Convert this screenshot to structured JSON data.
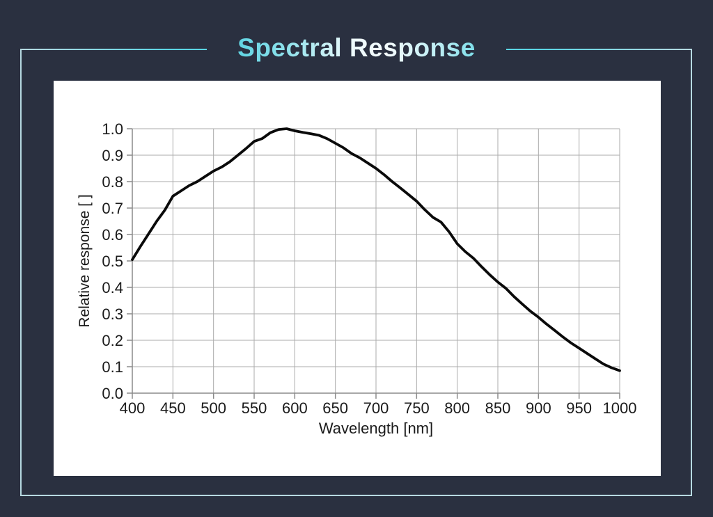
{
  "page": {
    "title": "Spectral Response",
    "background_color": "#2a3040",
    "accent_color": "#5bd6e4",
    "frame_line_color": "#b6d9e1",
    "panel_color": "#ffffff"
  },
  "chart_data": {
    "type": "line",
    "title": "Spectral Response",
    "xlabel": "Wavelength [nm]",
    "ylabel": "Relative response [ ]",
    "xlim": [
      400,
      1000
    ],
    "ylim": [
      0.0,
      1.0
    ],
    "grid": true,
    "legend": false,
    "grid_color": "#ababab",
    "axis_color": "#8a8a8a",
    "tick_label_color": "#1a1a1a",
    "line_color": "#0a0a0a",
    "line_width": 3.8,
    "xticks": [
      400,
      450,
      500,
      550,
      600,
      650,
      700,
      750,
      800,
      850,
      900,
      950,
      1000
    ],
    "yticks": [
      0.0,
      0.1,
      0.2,
      0.3,
      0.4,
      0.5,
      0.6,
      0.7,
      0.8,
      0.9,
      1.0
    ],
    "ytick_labels": [
      "0.0",
      "0.1",
      "0.2",
      "0.3",
      "0.4",
      "0.5",
      "0.6",
      "0.7",
      "0.8",
      "0.9",
      "1.0"
    ],
    "series": [
      {
        "name": "Relative response",
        "x": [
          400,
          410,
          420,
          430,
          440,
          450,
          460,
          470,
          480,
          490,
          500,
          510,
          520,
          530,
          540,
          550,
          560,
          570,
          580,
          590,
          600,
          610,
          620,
          630,
          640,
          650,
          660,
          670,
          680,
          690,
          700,
          710,
          720,
          730,
          740,
          750,
          760,
          770,
          780,
          790,
          800,
          810,
          820,
          830,
          840,
          850,
          860,
          870,
          880,
          890,
          900,
          910,
          920,
          930,
          940,
          950,
          960,
          970,
          980,
          990,
          1000
        ],
        "y": [
          0.505,
          0.555,
          0.602,
          0.65,
          0.692,
          0.745,
          0.765,
          0.785,
          0.8,
          0.82,
          0.84,
          0.855,
          0.875,
          0.9,
          0.925,
          0.952,
          0.963,
          0.985,
          0.997,
          1.0,
          0.992,
          0.986,
          0.981,
          0.975,
          0.962,
          0.945,
          0.928,
          0.906,
          0.89,
          0.87,
          0.85,
          0.826,
          0.8,
          0.776,
          0.751,
          0.726,
          0.694,
          0.665,
          0.647,
          0.61,
          0.565,
          0.535,
          0.51,
          0.478,
          0.448,
          0.42,
          0.396,
          0.365,
          0.337,
          0.31,
          0.287,
          0.261,
          0.237,
          0.213,
          0.19,
          0.17,
          0.15,
          0.13,
          0.11,
          0.096,
          0.085
        ]
      }
    ]
  }
}
